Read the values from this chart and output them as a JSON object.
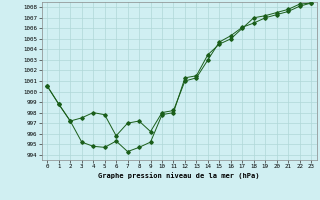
{
  "title": "Graphe pression niveau de la mer (hPa)",
  "background_color": "#d0eff2",
  "line_color": "#1a5e1a",
  "grid_color": "#b0d8d8",
  "xlim": [
    -0.5,
    23.5
  ],
  "ylim": [
    993.5,
    1008.5
  ],
  "yticks": [
    994,
    995,
    996,
    997,
    998,
    999,
    1000,
    1001,
    1002,
    1003,
    1004,
    1005,
    1006,
    1007,
    1008
  ],
  "xticks": [
    0,
    1,
    2,
    3,
    4,
    5,
    6,
    7,
    8,
    9,
    10,
    11,
    12,
    13,
    14,
    15,
    16,
    17,
    18,
    19,
    20,
    21,
    22,
    23
  ],
  "line1_x": [
    0,
    1,
    2,
    3,
    4,
    5,
    6,
    7,
    8,
    9,
    10,
    11,
    12,
    13,
    14,
    15,
    16,
    17,
    18,
    19,
    20,
    21,
    22,
    23
  ],
  "line1_y": [
    1000.5,
    998.8,
    997.2,
    995.2,
    994.8,
    994.7,
    995.3,
    994.3,
    994.7,
    995.2,
    997.8,
    998.0,
    1001.3,
    1001.5,
    1003.5,
    1004.5,
    1005.0,
    1006.0,
    1007.0,
    1007.2,
    1007.5,
    1007.8,
    1008.3,
    1008.4
  ],
  "line2_x": [
    0,
    1,
    2,
    3,
    4,
    5,
    6,
    7,
    8,
    9,
    10,
    11,
    12,
    13,
    14,
    15,
    16,
    17,
    18,
    19,
    20,
    21,
    22,
    23
  ],
  "line2_y": [
    1000.5,
    998.8,
    997.2,
    997.5,
    998.0,
    997.8,
    995.8,
    997.0,
    997.2,
    996.2,
    998.0,
    998.2,
    1001.0,
    1001.3,
    1003.0,
    1004.7,
    1005.3,
    1006.1,
    1006.5,
    1007.0,
    1007.3,
    1007.6,
    1008.1,
    1008.4
  ]
}
